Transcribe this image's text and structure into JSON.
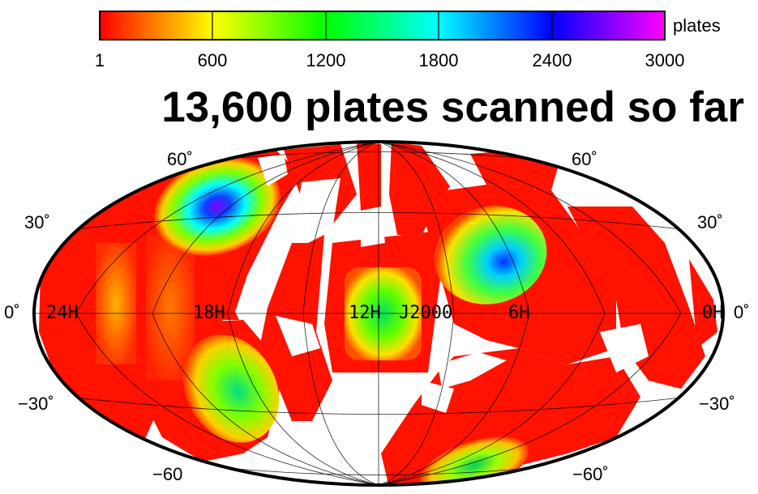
{
  "title": "13,600 plates scanned so far",
  "colorbar": {
    "unit_label": "plates",
    "min": 1,
    "max": 3000,
    "ticks": [
      "1",
      "600",
      "1200",
      "1800",
      "2400",
      "3000"
    ],
    "tick_values": [
      1,
      600,
      1200,
      1800,
      2400,
      3000
    ],
    "gradient_colors": [
      "#ff0000",
      "#ffff00",
      "#00ff00",
      "#00ffff",
      "#0000ff",
      "#ff00ff"
    ]
  },
  "map": {
    "projection": "Hammer-Aitoff all-sky",
    "epoch_label": "J2000",
    "ra_labels": [
      "24H",
      "18H",
      "12H",
      "6H",
      "0H"
    ],
    "dec_labels": {
      "dec_60_left": "60˚",
      "dec_60_right": "60˚",
      "dec_30_left": "30˚",
      "dec_30_right": "30˚",
      "dec_0_left": "0˚",
      "dec_0_right": "0˚",
      "dec_m30_left": "−30˚",
      "dec_m30_right": "−30˚",
      "dec_m60_left": "−60",
      "dec_m60_right": "−60˚"
    },
    "coverage_regions": [
      {
        "name": "north-cluster-18h",
        "ra_h": 18.2,
        "dec": 38,
        "peak_plates": 2600
      },
      {
        "name": "center-12h",
        "ra_h": 12.0,
        "dec": 0,
        "peak_plates": 1100
      },
      {
        "name": "east-cluster-6h",
        "ra_h": 5.5,
        "dec": 20,
        "peak_plates": 2200
      },
      {
        "name": "south-18h",
        "ra_h": 18.0,
        "dec": -32,
        "peak_plates": 1000
      },
      {
        "name": "south-6h",
        "ra_h": 8.0,
        "dec": -65,
        "peak_plates": 1000
      }
    ]
  }
}
